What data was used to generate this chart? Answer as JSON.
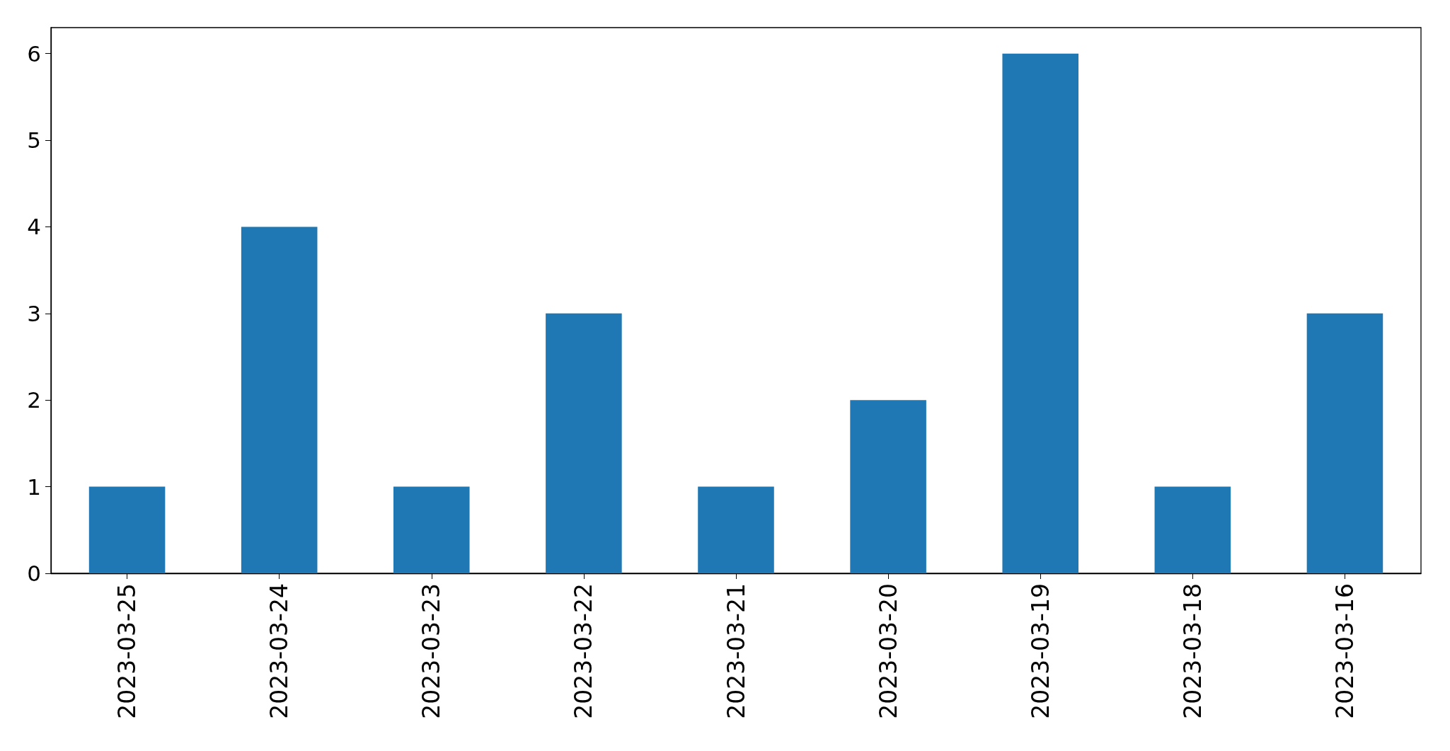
{
  "chart_data": {
    "type": "bar",
    "categories": [
      "2023-03-25",
      "2023-03-24",
      "2023-03-23",
      "2023-03-22",
      "2023-03-21",
      "2023-03-20",
      "2023-03-19",
      "2023-03-18",
      "2023-03-16"
    ],
    "values": [
      1,
      4,
      1,
      3,
      1,
      2,
      6,
      1,
      3
    ],
    "color": "#1f77b4",
    "ylim": [
      0,
      6.3
    ],
    "yticks": [
      0,
      1,
      2,
      3,
      4,
      5,
      6
    ]
  }
}
